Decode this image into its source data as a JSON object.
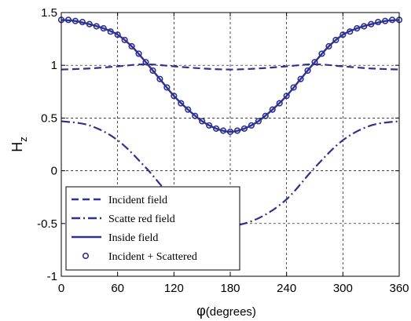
{
  "chart_data": {
    "type": "line",
    "xlabel_symbol": "φ",
    "xlabel_text": "(degrees)",
    "ylabel_main": "H",
    "ylabel_sub": "z",
    "xlim": [
      0,
      360
    ],
    "ylim": [
      -1,
      1.5
    ],
    "xticks": [
      0,
      60,
      120,
      180,
      240,
      300,
      360
    ],
    "yticks": [
      -1,
      -0.5,
      0,
      0.5,
      1,
      1.5
    ],
    "xtick_labels": [
      "0",
      "60",
      "120",
      "180",
      "240",
      "300",
      "360"
    ],
    "ytick_labels": [
      "-1",
      "-0.5",
      "0",
      "0.5",
      "1",
      "1.5"
    ],
    "grid": true,
    "legend_position": "bottom-left",
    "series_color": "#2e3192",
    "series": [
      {
        "name": "Incident field",
        "style": "dashed",
        "x": [
          0,
          30,
          60,
          90,
          120,
          150,
          180,
          210,
          240,
          270,
          300,
          330,
          360
        ],
        "values": [
          0.96,
          0.97,
          0.99,
          1.01,
          0.99,
          0.97,
          0.96,
          0.97,
          0.99,
          1.01,
          0.99,
          0.97,
          0.96
        ]
      },
      {
        "name": "Scatte red field",
        "style": "dashdot",
        "x": [
          0,
          30,
          60,
          90,
          120,
          150,
          180,
          210,
          240,
          270,
          300,
          330,
          360
        ],
        "values": [
          0.47,
          0.43,
          0.29,
          0.03,
          -0.27,
          -0.45,
          -0.52,
          -0.45,
          -0.27,
          0.03,
          0.29,
          0.43,
          0.47
        ]
      },
      {
        "name": "Inside field",
        "style": "solid",
        "x": [
          0,
          15,
          30,
          45,
          60,
          75,
          90,
          105,
          120,
          135,
          150,
          165,
          180,
          195,
          210,
          225,
          240,
          255,
          270,
          285,
          300,
          315,
          330,
          345,
          360
        ],
        "values": [
          1.43,
          1.42,
          1.39,
          1.35,
          1.29,
          1.18,
          1.03,
          0.87,
          0.71,
          0.58,
          0.47,
          0.4,
          0.37,
          0.4,
          0.47,
          0.58,
          0.71,
          0.87,
          1.03,
          1.18,
          1.29,
          1.35,
          1.39,
          1.42,
          1.43
        ]
      },
      {
        "name": "Incident + Scattered",
        "style": "markers",
        "marker": "circle",
        "x": [
          0,
          7.5,
          15,
          22.5,
          30,
          37.5,
          45,
          52.5,
          60,
          67.5,
          75,
          82.5,
          90,
          97.5,
          105,
          112.5,
          120,
          127.5,
          135,
          142.5,
          150,
          157.5,
          165,
          172.5,
          180,
          187.5,
          195,
          202.5,
          210,
          217.5,
          225,
          232.5,
          240,
          247.5,
          255,
          262.5,
          270,
          277.5,
          285,
          292.5,
          300,
          307.5,
          315,
          322.5,
          330,
          337.5,
          345,
          352.5,
          360
        ],
        "values": [
          1.43,
          1.43,
          1.42,
          1.41,
          1.39,
          1.37,
          1.35,
          1.32,
          1.29,
          1.24,
          1.18,
          1.11,
          1.03,
          0.95,
          0.87,
          0.79,
          0.71,
          0.64,
          0.58,
          0.52,
          0.47,
          0.43,
          0.4,
          0.38,
          0.37,
          0.38,
          0.4,
          0.43,
          0.47,
          0.52,
          0.58,
          0.64,
          0.71,
          0.79,
          0.87,
          0.95,
          1.03,
          1.11,
          1.18,
          1.24,
          1.29,
          1.32,
          1.35,
          1.37,
          1.39,
          1.41,
          1.42,
          1.43,
          1.43
        ]
      }
    ]
  }
}
